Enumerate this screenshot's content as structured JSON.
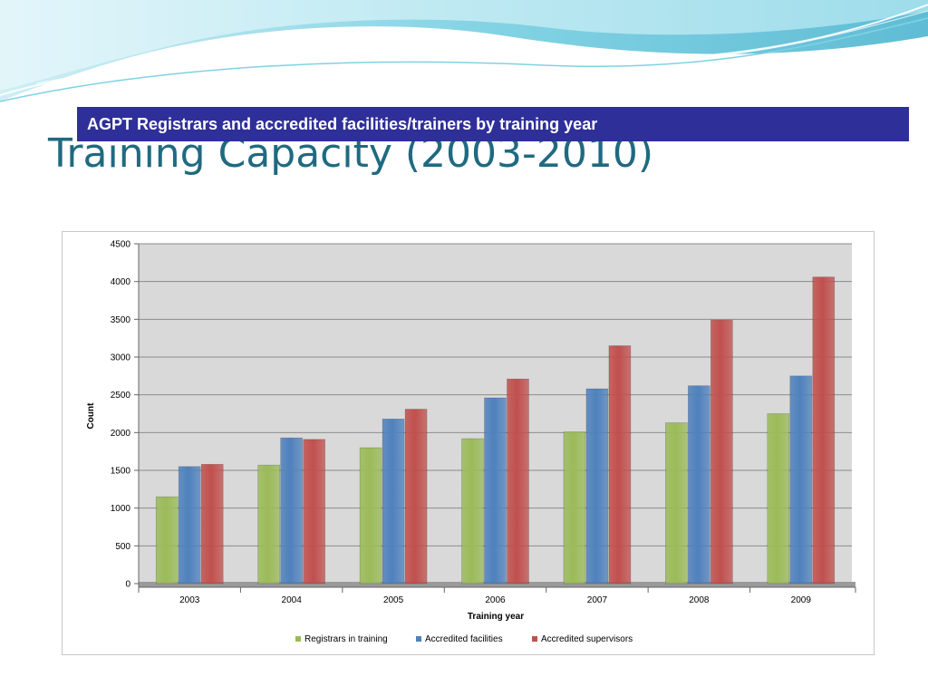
{
  "slide": {
    "banner_text": "AGPT Registrars and accredited facilities/trainers by training year",
    "title": "Training Capacity (2003-2010)"
  },
  "chart_data": {
    "type": "bar",
    "title": "",
    "xlabel": "Training year",
    "ylabel": "Count",
    "categories": [
      "2003",
      "2004",
      "2005",
      "2006",
      "2007",
      "2008",
      "2009"
    ],
    "ylim": [
      0,
      4500
    ],
    "yticks": [
      0,
      500,
      1000,
      1500,
      2000,
      2500,
      3000,
      3500,
      4000,
      4500
    ],
    "grid": true,
    "legend_position": "bottom",
    "series": [
      {
        "name": "Registrars in training",
        "color": "#9bbb59",
        "values": [
          1150,
          1570,
          1800,
          1920,
          2010,
          2130,
          2250
        ]
      },
      {
        "name": "Accredited facilities",
        "color": "#4f81bd",
        "values": [
          1550,
          1930,
          2180,
          2460,
          2580,
          2620,
          2750
        ]
      },
      {
        "name": "Accredited supervisors",
        "color": "#c0504d",
        "values": [
          1580,
          1910,
          2310,
          2710,
          3150,
          3490,
          4060
        ]
      }
    ]
  },
  "colors": {
    "banner_bg": "#2f2f9a",
    "title_text": "#1f6a80",
    "plot_bg": "#d9d9d9",
    "gridline": "#8c8c8c"
  }
}
